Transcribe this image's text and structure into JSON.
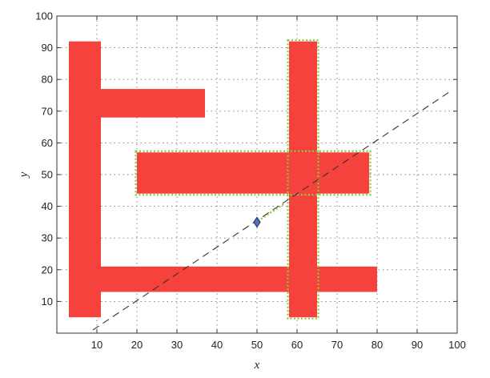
{
  "chart_data": {
    "type": "scatter",
    "title": "",
    "xlabel": "x",
    "ylabel": "y",
    "xlim": [
      0,
      100
    ],
    "ylim": [
      0,
      100
    ],
    "xticks": [
      10,
      20,
      30,
      40,
      50,
      60,
      70,
      80,
      90,
      100
    ],
    "yticks": [
      10,
      20,
      30,
      40,
      50,
      60,
      70,
      80,
      90,
      100
    ],
    "grid": true,
    "colors": {
      "obstacle": "#f5423d",
      "highlight": "#8dc63f",
      "line": "#333333",
      "point": "#1f3a7a"
    },
    "obstacles": [
      {
        "id": "left-bar",
        "x0": 3,
        "x1": 11,
        "y0": 5,
        "y1": 92,
        "highlighted": false
      },
      {
        "id": "top-arm",
        "x0": 11,
        "x1": 37,
        "y0": 68,
        "y1": 77,
        "highlighted": false
      },
      {
        "id": "bottom-bar",
        "x0": 11,
        "x1": 80,
        "y0": 13,
        "y1": 21,
        "highlighted": false
      },
      {
        "id": "middle-bar",
        "x0": 20,
        "x1": 78,
        "y0": 44,
        "y1": 57,
        "highlighted": true
      },
      {
        "id": "vertical-bar",
        "x0": 58,
        "x1": 65,
        "y0": 5,
        "y1": 92,
        "highlighted": true
      }
    ],
    "dashed_line": {
      "x": [
        9,
        98
      ],
      "y": [
        1,
        76
      ]
    },
    "point": {
      "x": 50,
      "y": 35
    },
    "green_segment": {
      "x": [
        51,
        57
      ],
      "y": [
        36,
        41
      ]
    }
  }
}
